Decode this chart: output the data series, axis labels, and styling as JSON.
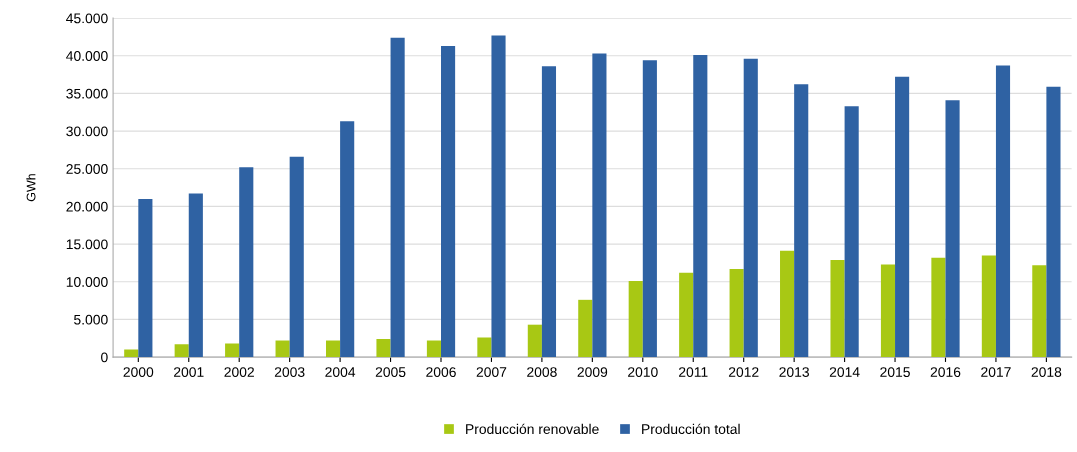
{
  "chart_data": {
    "type": "bar",
    "ylabel": "GWh",
    "categories": [
      "2000",
      "2001",
      "2002",
      "2003",
      "2004",
      "2005",
      "2006",
      "2007",
      "2008",
      "2009",
      "2010",
      "2011",
      "2012",
      "2013",
      "2014",
      "2015",
      "2016",
      "2017",
      "2018"
    ],
    "series": [
      {
        "name": "Producción renovable",
        "color": "#a8c814",
        "values": [
          1000,
          1700,
          1800,
          2200,
          2200,
          2400,
          2200,
          2600,
          4300,
          7600,
          10100,
          11200,
          11700,
          14100,
          12900,
          12300,
          13200,
          13500,
          12200
        ]
      },
      {
        "name": "Producción total",
        "color": "#2f62a3",
        "values": [
          21000,
          21700,
          25200,
          26600,
          31300,
          42400,
          41300,
          42700,
          38600,
          40300,
          39400,
          40100,
          39600,
          36200,
          33300,
          37200,
          34100,
          38700,
          35900
        ]
      }
    ],
    "ylim": [
      0,
      45000
    ],
    "yticks": [
      0,
      {
        "value": 5000,
        "label": "5.000"
      },
      {
        "value": 10000,
        "label": "10.000"
      },
      {
        "value": 15000,
        "label": "15.000"
      },
      {
        "value": 20000,
        "label": "20.000"
      },
      {
        "value": 25000,
        "label": "25.000"
      },
      {
        "value": 30000,
        "label": "30.000"
      },
      {
        "value": 35000,
        "label": "35.000"
      },
      {
        "value": 40000,
        "label": "40.000"
      },
      {
        "value": 45000,
        "label": "45.000"
      }
    ],
    "grid": "y",
    "legend": "bottom"
  }
}
